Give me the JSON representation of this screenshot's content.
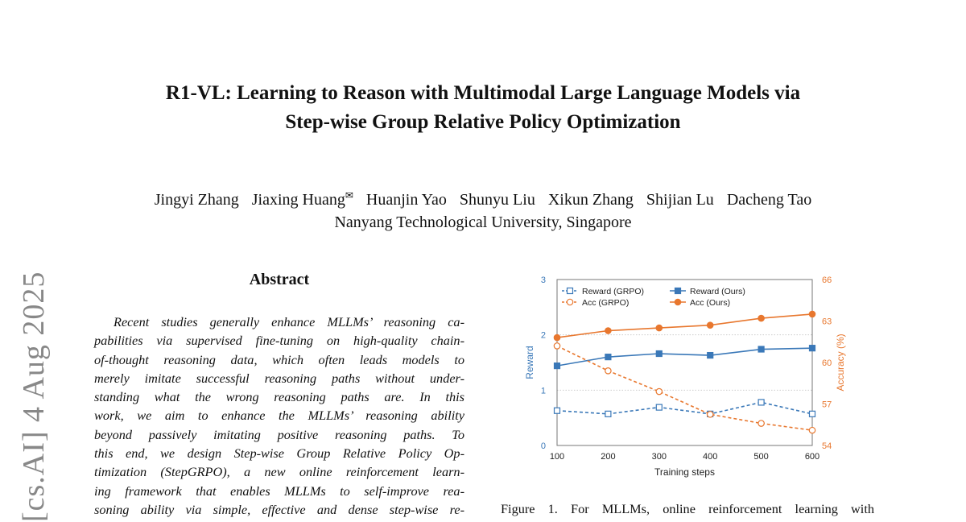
{
  "paper": {
    "title_line1": "R1-VL: Learning to Reason with Multimodal Large Language Models via",
    "title_line2": "Step-wise Group Relative Policy Optimization",
    "authors": [
      "Jingyi Zhang",
      "Jiaxing Huang",
      "Huanjin Yao",
      "Shunyu Liu",
      "Xikun Zhang",
      "Shijian Lu",
      "Dacheng Tao"
    ],
    "corresponding_mark": "✉",
    "affiliation": "Nanyang Technological University, Singapore",
    "arxiv_stamp": "[cs.AI]  4 Aug 2025",
    "abstract_heading": "Abstract",
    "abstract_lines": [
      "Recent studies generally enhance MLLMs’ reasoning ca-",
      "pabilities via supervised fine-tuning on high-quality chain-",
      "of-thought reasoning data, which often leads models to",
      "merely imitate successful reasoning paths without under-",
      "standing what the wrong reasoning paths are.  In this",
      "work, we aim to enhance the MLLMs’ reasoning ability",
      "beyond passively imitating positive reasoning paths.  To",
      "this end, we design Step-wise Group Relative Policy Op-",
      "timization (StepGRPO), a new online reinforcement learn-",
      "ing framework that enables MLLMs to self-improve rea-",
      "soning ability via simple, effective and dense step-wise re-"
    ],
    "caption": "Figure 1.   For MLLMs, online reinforcement learning with"
  },
  "chart_data": {
    "type": "line",
    "x": [
      100,
      200,
      300,
      400,
      500,
      600
    ],
    "xlabel": "Training steps",
    "ylabel": "Reward",
    "ylabel_right": "Accuracy (%)",
    "ylim": [
      0,
      3
    ],
    "ylim_right": [
      54,
      66
    ],
    "yticks": [
      0,
      1,
      2,
      3
    ],
    "yticks_right": [
      54,
      57,
      60,
      63,
      66
    ],
    "grid": "dotted horizontal at 1 and 2",
    "legend_placement": "top",
    "colors": {
      "reward": "#3a78b8",
      "acc": "#e8772e"
    },
    "series": [
      {
        "name": "Reward (GRPO)",
        "axis": "left",
        "style": "dashed-open-square",
        "values": [
          0.63,
          0.57,
          0.69,
          0.57,
          0.78,
          0.57
        ]
      },
      {
        "name": "Reward (Ours)",
        "axis": "left",
        "style": "solid-filled-square",
        "values": [
          1.44,
          1.6,
          1.66,
          1.63,
          1.74,
          1.76
        ]
      },
      {
        "name": "Acc (GRPO)",
        "axis": "right",
        "style": "dashed-open-circle",
        "values": [
          61.2,
          59.4,
          57.9,
          56.25,
          55.6,
          55.1
        ]
      },
      {
        "name": "Acc (Ours)",
        "axis": "right",
        "style": "solid-filled-circle",
        "values": [
          61.8,
          62.3,
          62.5,
          62.7,
          63.2,
          63.5
        ]
      }
    ]
  }
}
